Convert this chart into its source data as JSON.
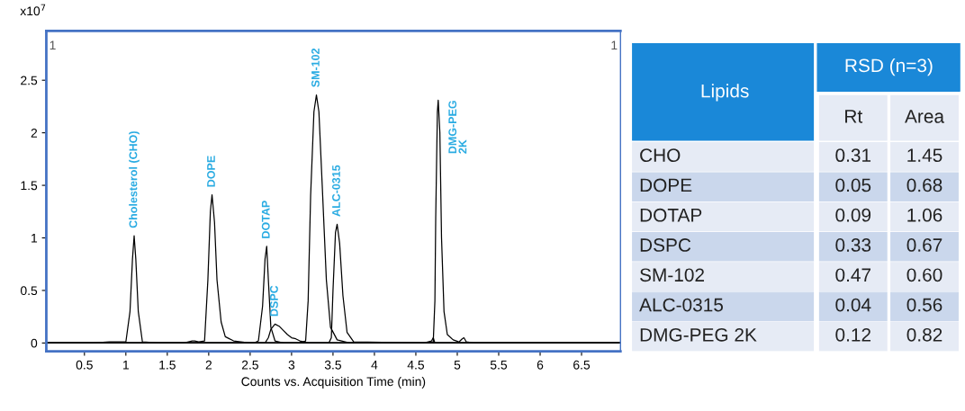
{
  "chart_data": [
    {
      "type": "line",
      "xlabel": "Counts vs. Acquisition Time (min)",
      "xlim": [
        0.04,
        6.97
      ],
      "ylim": [
        -0.08,
        2.97
      ],
      "xticks": [
        0.5,
        1,
        1.5,
        2,
        2.5,
        3,
        3.5,
        4,
        4.5,
        5,
        5.5,
        6,
        6.5
      ],
      "yticks": [
        0,
        0.5,
        1,
        1.5,
        2,
        2.5
      ],
      "grid": false,
      "legend": false,
      "marker": "none",
      "line_style": "solid",
      "series": [
        {
          "color": "#000000",
          "x": [
            0.04,
            0.6,
            0.8,
            1.0,
            1.05,
            1.08,
            1.1,
            1.12,
            1.15,
            1.2,
            1.4,
            6.97
          ],
          "values": [
            0,
            0,
            0.01,
            0.01,
            0.3,
            0.8,
            1.02,
            0.8,
            0.3,
            0.01,
            0,
            0
          ]
        },
        {
          "color": "#000000",
          "x": [
            0.04,
            1.7,
            1.8,
            1.83,
            1.88,
            1.95,
            1.99,
            2.02,
            2.04,
            2.07,
            2.1,
            2.15,
            2.2,
            2.3,
            2.5,
            6.97
          ],
          "values": [
            0,
            0,
            0.02,
            0.02,
            0.01,
            0.02,
            0.6,
            1.25,
            1.41,
            1.15,
            0.6,
            0.2,
            0.06,
            0.02,
            0,
            0
          ]
        },
        {
          "color": "#000000",
          "x": [
            0.04,
            2.55,
            2.6,
            2.65,
            2.68,
            2.7,
            2.72,
            2.75,
            2.8,
            2.9,
            6.97
          ],
          "values": [
            0,
            0,
            0.02,
            0.35,
            0.8,
            0.92,
            0.6,
            0.15,
            0.02,
            0,
            0
          ]
        },
        {
          "color": "#000000",
          "x": [
            0.04,
            2.68,
            2.72,
            2.75,
            2.8,
            2.85,
            2.9,
            2.95,
            3.0,
            3.05,
            3.1,
            3.2,
            6.97
          ],
          "values": [
            0,
            0,
            0.05,
            0.13,
            0.18,
            0.16,
            0.12,
            0.08,
            0.05,
            0.04,
            0.02,
            0,
            0
          ]
        },
        {
          "color": "#000000",
          "x": [
            0.04,
            3.1,
            3.17,
            3.2,
            3.23,
            3.27,
            3.3,
            3.33,
            3.37,
            3.42,
            3.47,
            3.55,
            3.7,
            6.97
          ],
          "values": [
            0,
            0,
            0.02,
            0.4,
            1.4,
            2.2,
            2.36,
            2.2,
            1.5,
            0.6,
            0.15,
            0.03,
            0,
            0
          ]
        },
        {
          "color": "#000000",
          "x": [
            0.04,
            3.45,
            3.48,
            3.5,
            3.53,
            3.55,
            3.58,
            3.62,
            3.67,
            3.75,
            4.6,
            4.69,
            4.71,
            4.73,
            6.97
          ],
          "values": [
            0,
            0,
            0.05,
            0.5,
            1.05,
            1.13,
            0.95,
            0.45,
            0.1,
            0.01,
            0,
            0.02,
            0.05,
            0,
            0
          ]
        },
        {
          "color": "#000000",
          "x": [
            0.04,
            4.65,
            4.71,
            4.73,
            4.74,
            4.76,
            4.77,
            4.79,
            4.81,
            4.84,
            4.88,
            4.95,
            5.02,
            5.06,
            5.08,
            5.11,
            5.2,
            6.97
          ],
          "values": [
            0,
            0,
            0.01,
            0.4,
            1.2,
            2.2,
            2.31,
            2.0,
            1.0,
            0.3,
            0.08,
            0.03,
            0.01,
            0.04,
            0.05,
            0.01,
            0,
            0
          ]
        }
      ],
      "annotations": [
        {
          "text": "Cholesterol (CHO)",
          "x": 1.1,
          "y": 1.02
        },
        {
          "text": "DOPE",
          "x": 2.04,
          "y": 1.41
        },
        {
          "text": "DOTAP",
          "x": 2.7,
          "y": 0.92
        },
        {
          "text": "DSPC",
          "x": 2.8,
          "y": 0.18
        },
        {
          "text": "SM-102",
          "x": 3.3,
          "y": 2.36
        },
        {
          "text": "ALC-0315",
          "x": 3.55,
          "y": 1.13
        },
        {
          "text": "DMG-PEG\n2K",
          "x": 4.77,
          "y": 2.31
        },
        "x10$^{7}$",
        "1",
        "1"
      ]
    },
    {
      "type": "heatmap",
      "title": "RSD (n=3)",
      "ylabel": "Lipids",
      "categories": [
        "Rt",
        "Area"
      ],
      "y_categories": [
        "CHO",
        "DOPE",
        "DOTAP",
        "DSPC",
        "SM-102",
        "ALC-0315",
        "DMG-PEG 2K"
      ],
      "cells": [
        [
          0.31,
          1.45
        ],
        [
          0.05,
          0.68
        ],
        [
          0.09,
          1.06
        ],
        [
          0.33,
          0.67
        ],
        [
          0.47,
          0.6
        ],
        [
          0.04,
          0.56
        ],
        [
          0.12,
          0.82
        ]
      ],
      "cell_labels": [
        [
          "0.31",
          "1.45"
        ],
        [
          "0.05",
          "0.68"
        ],
        [
          "0.09",
          "1.06"
        ],
        [
          "0.33",
          "0.67"
        ],
        [
          "0.47",
          "0.60"
        ],
        [
          "0.04",
          "0.56"
        ],
        [
          "0.12",
          "0.82"
        ]
      ],
      "data_labels": true,
      "color": "#1a88d8",
      "colors": [
        "#e6ebf5",
        "#cad7ec"
      ]
    }
  ]
}
